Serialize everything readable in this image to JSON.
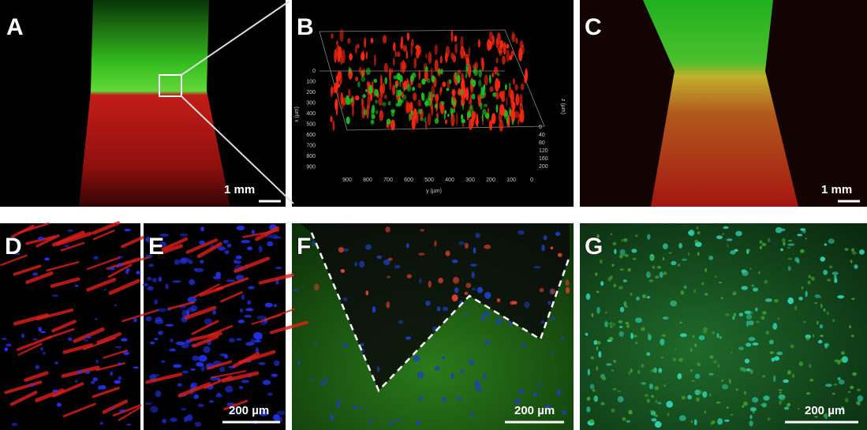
{
  "panels": [
    {
      "label": "A",
      "scale_bar": "1 mm"
    },
    {
      "label": "B"
    },
    {
      "label": "C",
      "scale_bar": "1 mm"
    },
    {
      "label": "D"
    },
    {
      "label": "E",
      "scale_bar": "200 µm"
    },
    {
      "label": "F",
      "scale_bar": "200 µm"
    },
    {
      "label": "G",
      "scale_bar": "200 µm"
    }
  ],
  "b_axes": {
    "x_label": "x (µm)",
    "x_ticks": [
      0,
      100,
      200,
      300,
      400,
      500,
      600,
      700,
      800,
      900
    ],
    "y_label": "y (µm)",
    "y_ticks": [
      900,
      800,
      700,
      600,
      500,
      400,
      300,
      200,
      100,
      0
    ],
    "z_label": "z (µm)",
    "z_ticks": [
      0,
      40,
      80,
      120,
      160,
      200
    ]
  }
}
